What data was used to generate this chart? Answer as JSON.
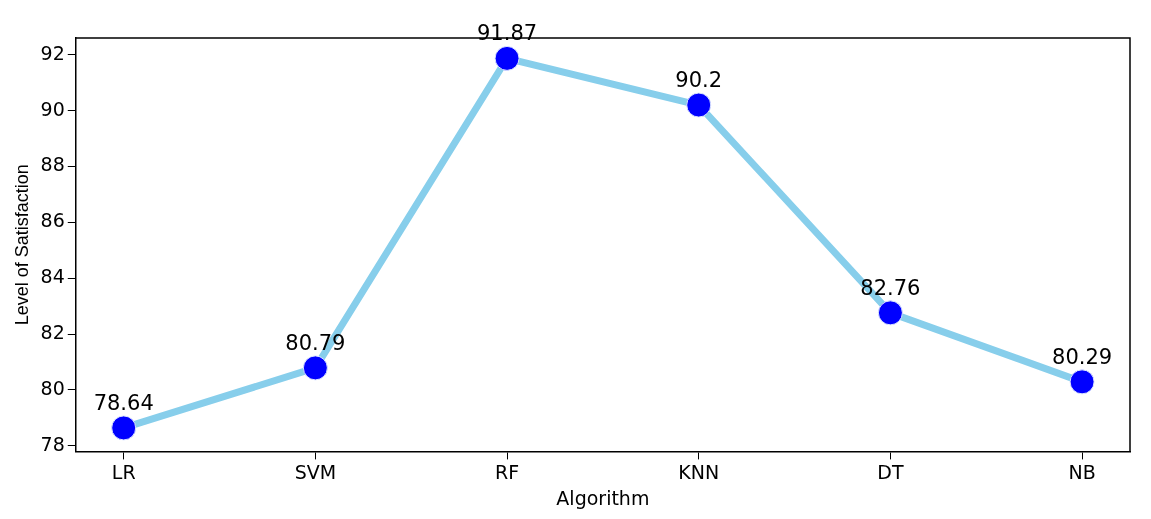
{
  "chart_data": {
    "type": "line",
    "xlabel": "Algorithm",
    "ylabel": "Level of Satisfaction",
    "categories": [
      "LR",
      "SVM",
      "RF",
      "KNN",
      "DT",
      "NB"
    ],
    "series": [
      {
        "color": "#87ceeb",
        "values": [
          78.64,
          80.79,
          91.87,
          90.2,
          82.76,
          80.29
        ]
      }
    ],
    "ylim": [
      77.8,
      92.6
    ],
    "yticks": [
      78,
      80,
      82,
      84,
      86,
      88,
      90,
      92
    ],
    "grid": false,
    "legend": false,
    "marker": "circle",
    "line_style": "solid",
    "data_labels": true
  }
}
